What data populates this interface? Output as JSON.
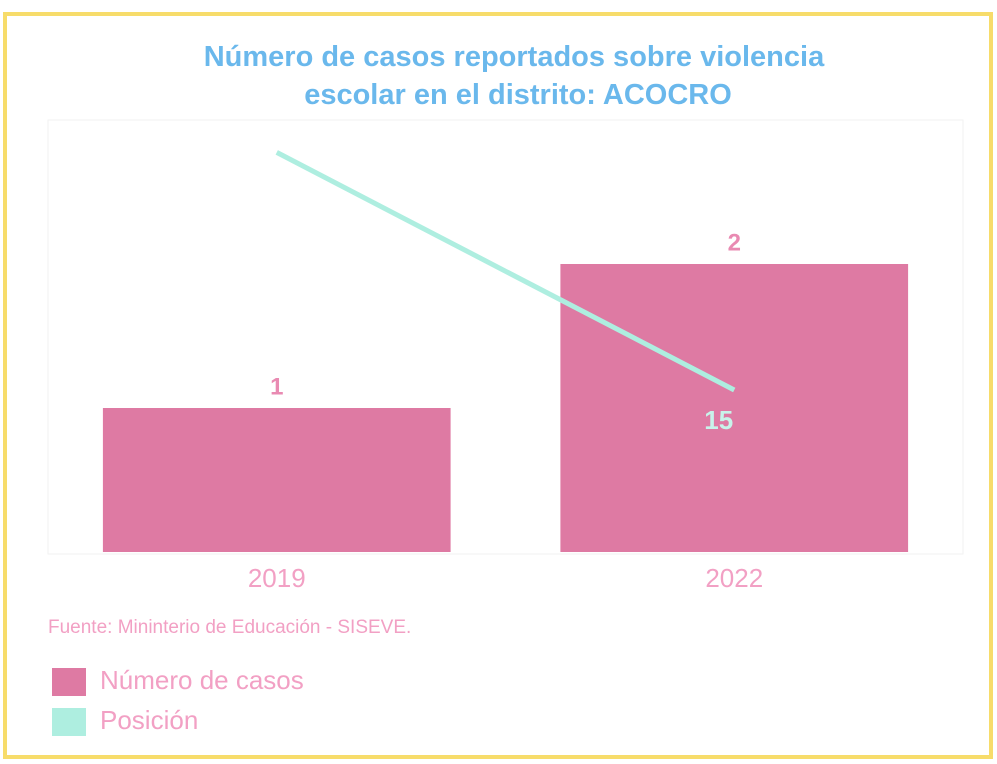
{
  "chart_data": {
    "type": "bar",
    "title": "Número de casos reportados sobre violencia escolar en el distrito: ACOCRO",
    "categories": [
      "2019",
      "2022"
    ],
    "series": [
      {
        "name": "Número de casos",
        "type": "bar",
        "color": "#de7aa3",
        "values": [
          1,
          2
        ]
      },
      {
        "name": "Posición",
        "type": "line",
        "axis": "y2",
        "color": "#aeeee0",
        "values": [
          37,
          15
        ],
        "value_labels": [
          null,
          "15"
        ]
      }
    ],
    "ylim": [
      0,
      3
    ],
    "y2lim": [
      0,
      40
    ],
    "source": "Fuente: Mininterio de Educación - SISEVE.",
    "legend": "bottom-left"
  }
}
